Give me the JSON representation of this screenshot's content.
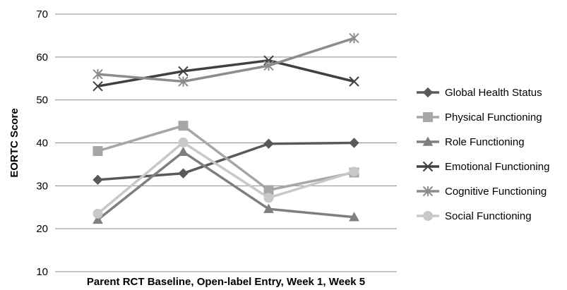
{
  "chart_data": {
    "type": "line",
    "title": "",
    "xlabel": "Parent RCT Baseline, Open-label Entry, Week 1, Week 5",
    "ylabel": "EORTC Score",
    "ylim": [
      10,
      70
    ],
    "yticks": [
      10,
      20,
      30,
      40,
      50,
      60,
      70
    ],
    "x": [
      1,
      2,
      3,
      4
    ],
    "grid": true,
    "legend_position": "right",
    "series": [
      {
        "name": "Global Health Status",
        "values": [
          31.4,
          32.9,
          39.8,
          40.0
        ],
        "color": "#595959",
        "marker": "diamond"
      },
      {
        "name": "Physical Functioning",
        "values": [
          38.1,
          44.0,
          29.0,
          33.1
        ],
        "color": "#a6a6a6",
        "marker": "square"
      },
      {
        "name": "Role Functioning",
        "values": [
          22.1,
          37.9,
          24.6,
          22.7
        ],
        "color": "#7f7f7f",
        "marker": "triangle"
      },
      {
        "name": "Emotional Functioning",
        "values": [
          53.2,
          56.7,
          59.2,
          54.3
        ],
        "color": "#404040",
        "marker": "x"
      },
      {
        "name": "Cognitive Functioning",
        "values": [
          56.0,
          54.3,
          58.0,
          64.4
        ],
        "color": "#8c8c8c",
        "marker": "star"
      },
      {
        "name": "Social Functioning",
        "values": [
          23.5,
          40.1,
          27.2,
          33.3
        ],
        "color": "#c8c8c8",
        "marker": "circle"
      }
    ]
  }
}
